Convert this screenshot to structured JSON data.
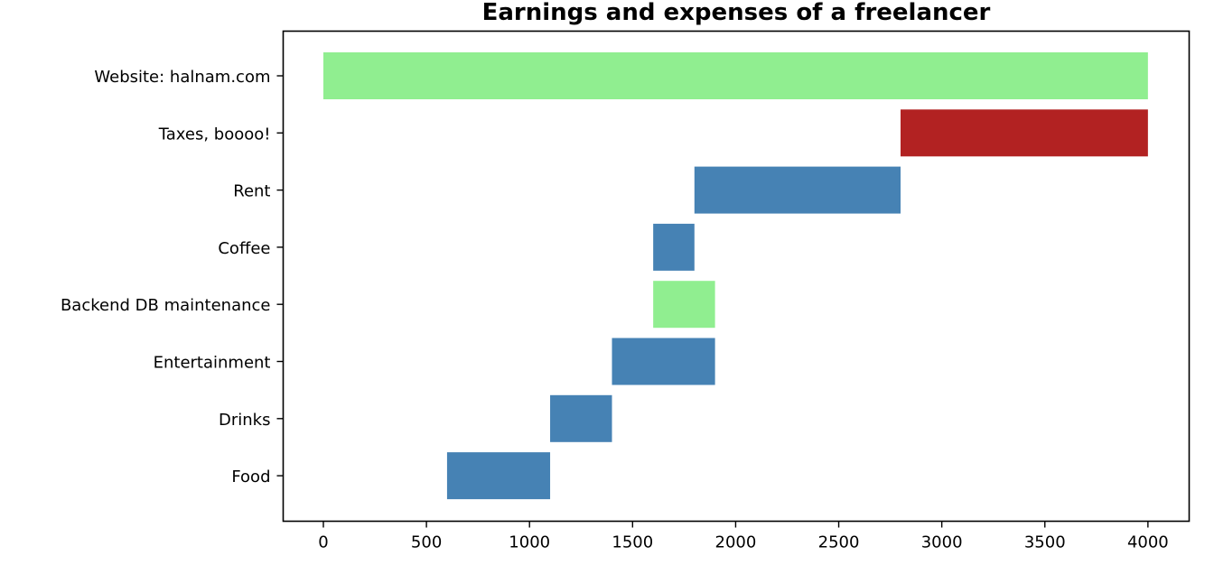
{
  "chart_data": {
    "type": "bar",
    "orientation": "horizontal-floating",
    "title": "Earnings and expenses of a freelancer",
    "xlabel": "",
    "ylabel": "",
    "xlim": [
      -195,
      4200
    ],
    "xticks": [
      0,
      500,
      1000,
      1500,
      2000,
      2500,
      3000,
      3500,
      4000
    ],
    "grid": false,
    "legend": "none",
    "colors": {
      "earning": "#90ee90",
      "expense": "#4682b4",
      "tax": "#b22222"
    },
    "categories": [
      "Website: halnam.com",
      "Taxes, boooo!",
      "Rent",
      "Coffee",
      "Backend DB maintenance",
      "Entertainment",
      "Drinks",
      "Food"
    ],
    "bars": [
      {
        "label": "Website: halnam.com",
        "start": 0,
        "end": 4000,
        "kind": "earning"
      },
      {
        "label": "Taxes, boooo!",
        "start": 2800,
        "end": 4000,
        "kind": "tax"
      },
      {
        "label": "Rent",
        "start": 1800,
        "end": 2800,
        "kind": "expense"
      },
      {
        "label": "Coffee",
        "start": 1600,
        "end": 1800,
        "kind": "expense"
      },
      {
        "label": "Backend DB maintenance",
        "start": 1600,
        "end": 1900,
        "kind": "earning"
      },
      {
        "label": "Entertainment",
        "start": 1400,
        "end": 1900,
        "kind": "expense"
      },
      {
        "label": "Drinks",
        "start": 1100,
        "end": 1400,
        "kind": "expense"
      },
      {
        "label": "Food",
        "start": 600,
        "end": 1100,
        "kind": "expense"
      }
    ]
  }
}
